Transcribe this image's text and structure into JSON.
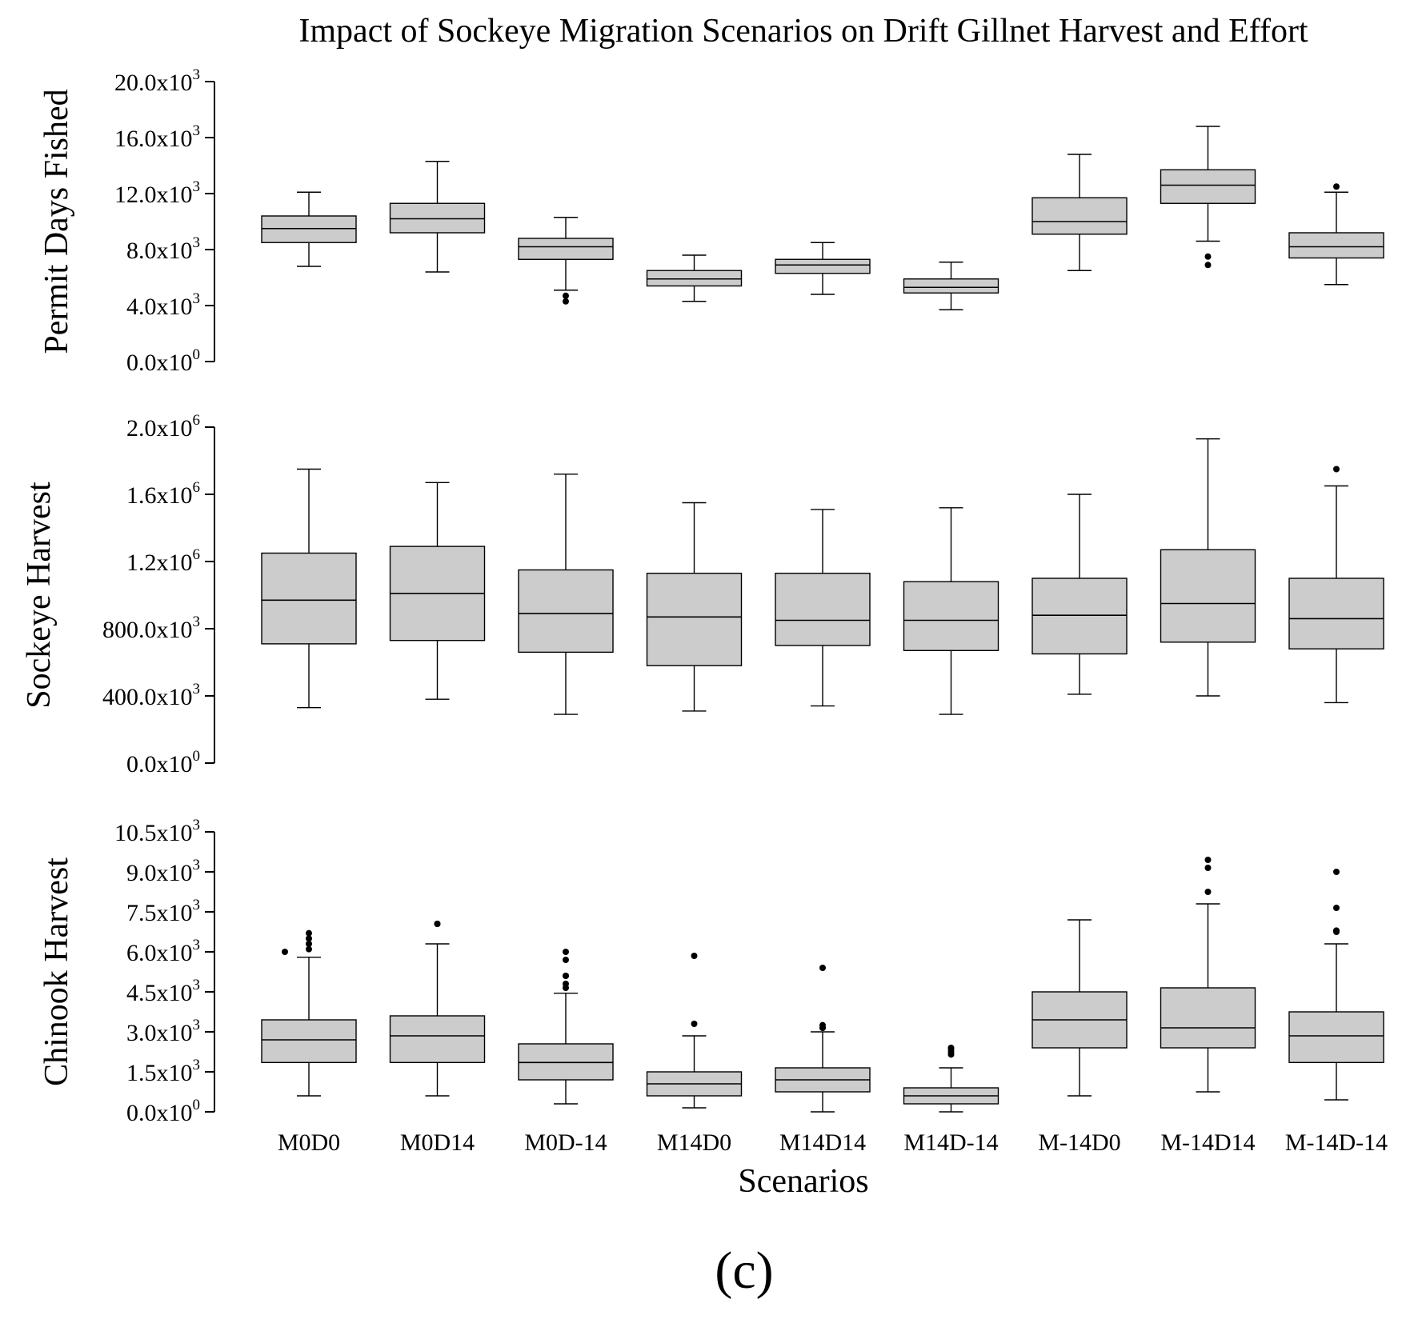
{
  "chart_data": {
    "type": "box",
    "title": "Impact of Sockeye Migration Scenarios on Drift Gillnet Harvest and Effort",
    "xlabel": "Scenarios",
    "panel_tag": "(c)",
    "categories": [
      "M0D0",
      "M0D14",
      "M0D-14",
      "M14D0",
      "M14D14",
      "M14D-14",
      "M-14D0",
      "M-14D14",
      "M-14D-14"
    ],
    "panels": [
      {
        "ylabel": "Permit Days Fished",
        "ylim": [
          0,
          20000
        ],
        "ticks": [
          {
            "value": 0,
            "mantissa": "0.0x10",
            "exp": "0"
          },
          {
            "value": 4000,
            "mantissa": "4.0x10",
            "exp": "3"
          },
          {
            "value": 8000,
            "mantissa": "8.0x10",
            "exp": "3"
          },
          {
            "value": 12000,
            "mantissa": "12.0x10",
            "exp": "3"
          },
          {
            "value": 16000,
            "mantissa": "16.0x10",
            "exp": "3"
          },
          {
            "value": 20000,
            "mantissa": "20.0x10",
            "exp": "3"
          }
        ],
        "boxes": [
          {
            "min": 6800,
            "q1": 8500,
            "median": 9500,
            "q3": 10400,
            "max": 12100,
            "outliers": []
          },
          {
            "min": 6400,
            "q1": 9200,
            "median": 10200,
            "q3": 11300,
            "max": 14300,
            "outliers": []
          },
          {
            "min": 5100,
            "q1": 7300,
            "median": 8200,
            "q3": 8800,
            "max": 10300,
            "outliers": [
              4300,
              4700
            ]
          },
          {
            "min": 4300,
            "q1": 5400,
            "median": 5900,
            "q3": 6500,
            "max": 7600,
            "outliers": []
          },
          {
            "min": 4800,
            "q1": 6300,
            "median": 6900,
            "q3": 7300,
            "max": 8500,
            "outliers": []
          },
          {
            "min": 3700,
            "q1": 4900,
            "median": 5300,
            "q3": 5900,
            "max": 7100,
            "outliers": []
          },
          {
            "min": 6500,
            "q1": 9100,
            "median": 10000,
            "q3": 11700,
            "max": 14800,
            "outliers": []
          },
          {
            "min": 8600,
            "q1": 11300,
            "median": 12600,
            "q3": 13700,
            "max": 16800,
            "outliers": [
              6900,
              7500
            ]
          },
          {
            "min": 5500,
            "q1": 7400,
            "median": 8200,
            "q3": 9200,
            "max": 12100,
            "outliers": [
              12500
            ]
          }
        ]
      },
      {
        "ylabel": "Sockeye Harvest",
        "ylim": [
          0,
          2000000
        ],
        "ticks": [
          {
            "value": 0,
            "mantissa": "0.0x10",
            "exp": "0"
          },
          {
            "value": 400000,
            "mantissa": "400.0x10",
            "exp": "3"
          },
          {
            "value": 800000,
            "mantissa": "800.0x10",
            "exp": "3"
          },
          {
            "value": 1200000,
            "mantissa": "1.2x10",
            "exp": "6"
          },
          {
            "value": 1600000,
            "mantissa": "1.6x10",
            "exp": "6"
          },
          {
            "value": 2000000,
            "mantissa": "2.0x10",
            "exp": "6"
          }
        ],
        "boxes": [
          {
            "min": 330000,
            "q1": 710000,
            "median": 970000,
            "q3": 1250000,
            "max": 1750000,
            "outliers": []
          },
          {
            "min": 380000,
            "q1": 730000,
            "median": 1010000,
            "q3": 1290000,
            "max": 1670000,
            "outliers": []
          },
          {
            "min": 290000,
            "q1": 660000,
            "median": 890000,
            "q3": 1150000,
            "max": 1720000,
            "outliers": []
          },
          {
            "min": 310000,
            "q1": 580000,
            "median": 870000,
            "q3": 1130000,
            "max": 1550000,
            "outliers": []
          },
          {
            "min": 340000,
            "q1": 700000,
            "median": 850000,
            "q3": 1130000,
            "max": 1510000,
            "outliers": []
          },
          {
            "min": 290000,
            "q1": 670000,
            "median": 850000,
            "q3": 1080000,
            "max": 1520000,
            "outliers": []
          },
          {
            "min": 410000,
            "q1": 650000,
            "median": 880000,
            "q3": 1100000,
            "max": 1600000,
            "outliers": []
          },
          {
            "min": 400000,
            "q1": 720000,
            "median": 950000,
            "q3": 1270000,
            "max": 1930000,
            "outliers": []
          },
          {
            "min": 360000,
            "q1": 680000,
            "median": 860000,
            "q3": 1100000,
            "max": 1650000,
            "outliers": [
              1750000
            ]
          }
        ]
      },
      {
        "ylabel": "Chinook Harvest",
        "ylim": [
          0,
          10500
        ],
        "ticks": [
          {
            "value": 0,
            "mantissa": "0.0x10",
            "exp": "0"
          },
          {
            "value": 1500,
            "mantissa": "1.5x10",
            "exp": "3"
          },
          {
            "value": 3000,
            "mantissa": "3.0x10",
            "exp": "3"
          },
          {
            "value": 4500,
            "mantissa": "4.5x10",
            "exp": "3"
          },
          {
            "value": 6000,
            "mantissa": "6.0x10",
            "exp": "3"
          },
          {
            "value": 7500,
            "mantissa": "7.5x10",
            "exp": "3"
          },
          {
            "value": 9000,
            "mantissa": "9.0x10",
            "exp": "3"
          },
          {
            "value": 10500,
            "mantissa": "10.5x10",
            "exp": "3"
          }
        ],
        "boxes": [
          {
            "min": 600,
            "q1": 1850,
            "median": 2700,
            "q3": 3450,
            "max": 5800,
            "outliers": [
              6000,
              6100,
              6300,
              6500,
              6700
            ]
          },
          {
            "min": 600,
            "q1": 1850,
            "median": 2850,
            "q3": 3600,
            "max": 6300,
            "outliers": [
              7050,
              7050
            ]
          },
          {
            "min": 300,
            "q1": 1200,
            "median": 1850,
            "q3": 2550,
            "max": 4450,
            "outliers": [
              4650,
              4800,
              5100,
              5100,
              5700,
              6000
            ]
          },
          {
            "min": 150,
            "q1": 600,
            "median": 1050,
            "q3": 1500,
            "max": 2850,
            "outliers": [
              3300,
              5850
            ]
          },
          {
            "min": 0,
            "q1": 750,
            "median": 1200,
            "q3": 1650,
            "max": 3000,
            "outliers": [
              3150,
              3150,
              3250,
              5400
            ]
          },
          {
            "min": 0,
            "q1": 300,
            "median": 600,
            "q3": 900,
            "max": 1650,
            "outliers": [
              2150,
              2250,
              2350,
              2400
            ]
          },
          {
            "min": 600,
            "q1": 2400,
            "median": 3450,
            "q3": 4500,
            "max": 7200,
            "outliers": []
          },
          {
            "min": 750,
            "q1": 2400,
            "median": 3150,
            "q3": 4650,
            "max": 7800,
            "outliers": [
              8250,
              9150,
              9450
            ]
          },
          {
            "min": 450,
            "q1": 1850,
            "median": 2850,
            "q3": 3750,
            "max": 6300,
            "outliers": [
              6750,
              6800,
              7650,
              9000
            ]
          }
        ]
      }
    ]
  }
}
